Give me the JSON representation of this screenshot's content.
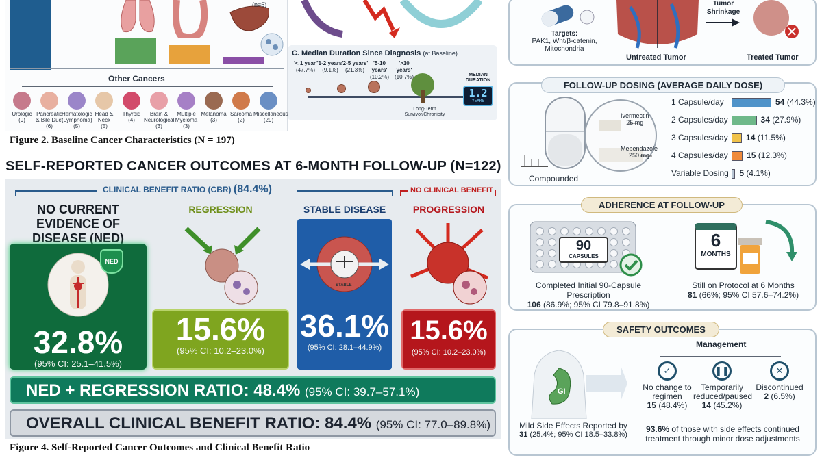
{
  "figure2": {
    "caption": "Figure 2. Baseline Cancer Characteristics (N = 197)",
    "top_note": "(n=5)",
    "other_cancers_title": "Other Cancers",
    "other_cancers": [
      {
        "name": "Urologic",
        "count": "(9)"
      },
      {
        "name": "Pancreatic & Bile Duct",
        "count": "(6)"
      },
      {
        "name": "Hematologic (Lymphoma)",
        "count": "(5)"
      },
      {
        "name": "Head & Neck",
        "count": "(5)"
      },
      {
        "name": "Thyroid",
        "count": "(4)"
      },
      {
        "name": "Brain & Neurological",
        "count": "(3)"
      },
      {
        "name": "Multiple Myeloma",
        "count": "(3)"
      },
      {
        "name": "Melanoma",
        "count": "(3)"
      },
      {
        "name": "Sarcoma",
        "count": "(2)"
      },
      {
        "name": "Miscellaneous",
        "count": "(29)"
      }
    ]
  },
  "panelC": {
    "title": "C. Median Duration Since Diagnosis",
    "title_note": "(at Baseline)",
    "durations": [
      {
        "label": "'< 1 year'",
        "pct": "(47.7%)"
      },
      {
        "label": "'1-2 years'",
        "pct": "(9.1%)"
      },
      {
        "label": "'2-5 years'",
        "pct": "(21.3%)"
      },
      {
        "label": "'5-10 years'",
        "pct": "(10.2%)"
      },
      {
        "label": "'>10 years'",
        "pct": "(10.7%)"
      }
    ],
    "survivor_label": "Long-Term Survivor/Chronicity",
    "median_label": "MEDIAN DURATION",
    "median_value": "1.2",
    "median_unit": "YEARS"
  },
  "outcomes": {
    "title": "SELF-REPORTED CANCER OUTCOMES AT 6-MONTH FOLLOW-UP (N=122)",
    "cbr_label": "CLINICAL BENEFIT RATIO (CBR)",
    "cbr_value": "(84.4%)",
    "no_benefit_label": "NO CLINICAL BENEFIT",
    "categories": [
      {
        "heading": "NO CURRENT EVIDENCE OF DISEASE (NED)",
        "pct": "32.8%",
        "ci": "(95% CI: 25.1–41.5%)",
        "color": "#0f6b3c",
        "badge": "NED"
      },
      {
        "heading": "REGRESSION",
        "pct": "15.6%",
        "ci": "(95% CI: 10.2–23.0%)",
        "color": "#7fa51f"
      },
      {
        "heading": "STABLE DISEASE",
        "pct": "36.1%",
        "ci": "(95% CI: 28.1–44.9%)",
        "color": "#1f5da8",
        "badge": "STABLE"
      },
      {
        "heading": "PROGRESSION",
        "pct": "15.6%",
        "ci": "(95% CI: 10.2–23.0%)",
        "color": "#b5161c"
      }
    ],
    "ned_regression": {
      "label": "NED + REGRESSION RATIO: 48.4%",
      "ci": "(95% CI: 39.7–57.1%)"
    },
    "overall_cbr": {
      "label": "OVERALL CLINICAL BENEFIT RATIO: 84.4%",
      "ci": "(95% CI: 77.0–89.8%)"
    },
    "caption": "Figure 4. Self-Reported Cancer Outcomes and Clinical Benefit Ratio"
  },
  "mechanism": {
    "targets_label": "Targets:",
    "targets": "PAK1, Wnt/β-catenin, Mitochondria",
    "tumor_shrinkage": "Tumor Shrinkage",
    "untreated": "Untreated Tumor",
    "treated": "Treated Tumor"
  },
  "dosing": {
    "title": "FOLLOW-UP DOSING (AVERAGE DAILY DOSE)",
    "compounded": "Compounded",
    "ivermectin": "Ivermectin",
    "ivermectin_dose": "25 mg",
    "mebendazole": "Mebendazole",
    "mebendazole_dose": "250 mg",
    "rows": [
      {
        "label": "1 Capsule/day",
        "count": "54",
        "pct": "(44.3%)",
        "value": 44.3,
        "color": "#4f93c9"
      },
      {
        "label": "2 Capsules/day",
        "count": "34",
        "pct": "(27.9%)",
        "value": 27.9,
        "color": "#6fb98a"
      },
      {
        "label": "3 Capsules/day",
        "count": "14",
        "pct": "(11.5%)",
        "value": 11.5,
        "color": "#f0c24a"
      },
      {
        "label": "4 Capsules/day",
        "count": "15",
        "pct": "(12.3%)",
        "value": 12.3,
        "color": "#ef8a3b"
      },
      {
        "label": "Variable Dosing",
        "count": "5",
        "pct": "(4.1%)",
        "value": 4.1,
        "color": "#b9c6d4"
      }
    ]
  },
  "adherence": {
    "title": "ADHERENCE AT FOLLOW-UP",
    "capsules_number": "90",
    "capsules_word": "CAPSULES",
    "months_number": "6",
    "months_word": "MONTHS",
    "completed_label": "Completed Initial 90-Capsule Prescription",
    "completed_value": "106",
    "completed_ci": "(86.9%; 95% CI 79.8–91.8%)",
    "still_label": "Still on Protocol at 6 Months",
    "still_value": "81",
    "still_ci": "(66%; 95% CI 57.6–74.2%)"
  },
  "safety": {
    "title": "SAFETY OUTCOMES",
    "management": "Management",
    "gi": "GI",
    "mild_label": "Mild Side Effects Reported by",
    "mild_value": "31",
    "mild_ci": "(25.4%; 95% CI 18.5–33.8%)",
    "options": [
      {
        "label": "No change to regimen",
        "value": "15",
        "pct": "(48.4%)",
        "symbol": "✓"
      },
      {
        "label": "Temporarily reduced/paused",
        "value": "14",
        "pct": "(45.2%)",
        "symbol": "❚❚"
      },
      {
        "label": "Discontinued",
        "value": "2",
        "pct": "(6.5%)",
        "symbol": "✕"
      }
    ],
    "continued_pct": "93.6%",
    "continued_text": "of those with side effects continued treatment through minor dose adjustments"
  }
}
